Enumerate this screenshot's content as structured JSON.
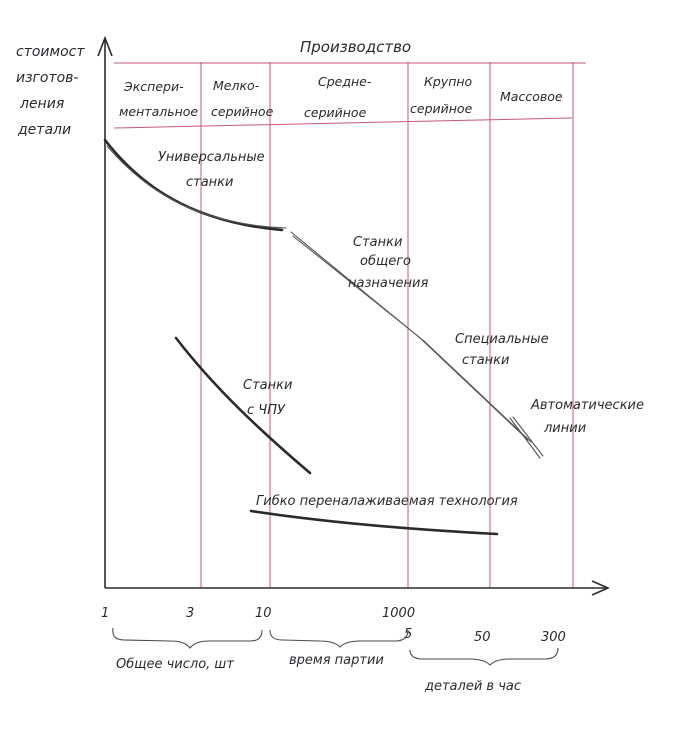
{
  "chart_data": {
    "type": "line",
    "ylabel_lines": [
      "стоимост",
      "изготов-",
      "ления",
      "детали"
    ],
    "production_header": "Производство",
    "production_types": [
      {
        "lines": [
          "Экспери-",
          "ментальное"
        ]
      },
      {
        "lines": [
          "Мелко-",
          "серийное"
        ]
      },
      {
        "lines": [
          "Средне-",
          "серийное"
        ]
      },
      {
        "lines": [
          "Крупно",
          "серийное"
        ]
      },
      {
        "lines": [
          "Массовое"
        ]
      }
    ],
    "x_ticks": {
      "total_count": [
        "1",
        "3",
        "10",
        "1000"
      ],
      "batch_time": [
        "5",
        "50",
        "300"
      ]
    },
    "x_groups": [
      "Общее число, шт",
      "время партии",
      "деталей в час"
    ],
    "series": [
      {
        "name_lines": [
          "Универсальные",
          "станки"
        ]
      },
      {
        "name_lines": [
          "Станки",
          "общего",
          "назначения"
        ]
      },
      {
        "name_lines": [
          "Специальные",
          "станки"
        ]
      },
      {
        "name_lines": [
          "Автоматические",
          "линии"
        ]
      },
      {
        "name_lines": [
          "Станки",
          "с ЧПУ"
        ]
      },
      {
        "name_lines": [
          "Гибко переналаживаемая технология"
        ]
      }
    ],
    "grid": "vertical-zone-lines"
  },
  "colors": {
    "grid": "#c9567e",
    "ink": "#2a2a30"
  }
}
